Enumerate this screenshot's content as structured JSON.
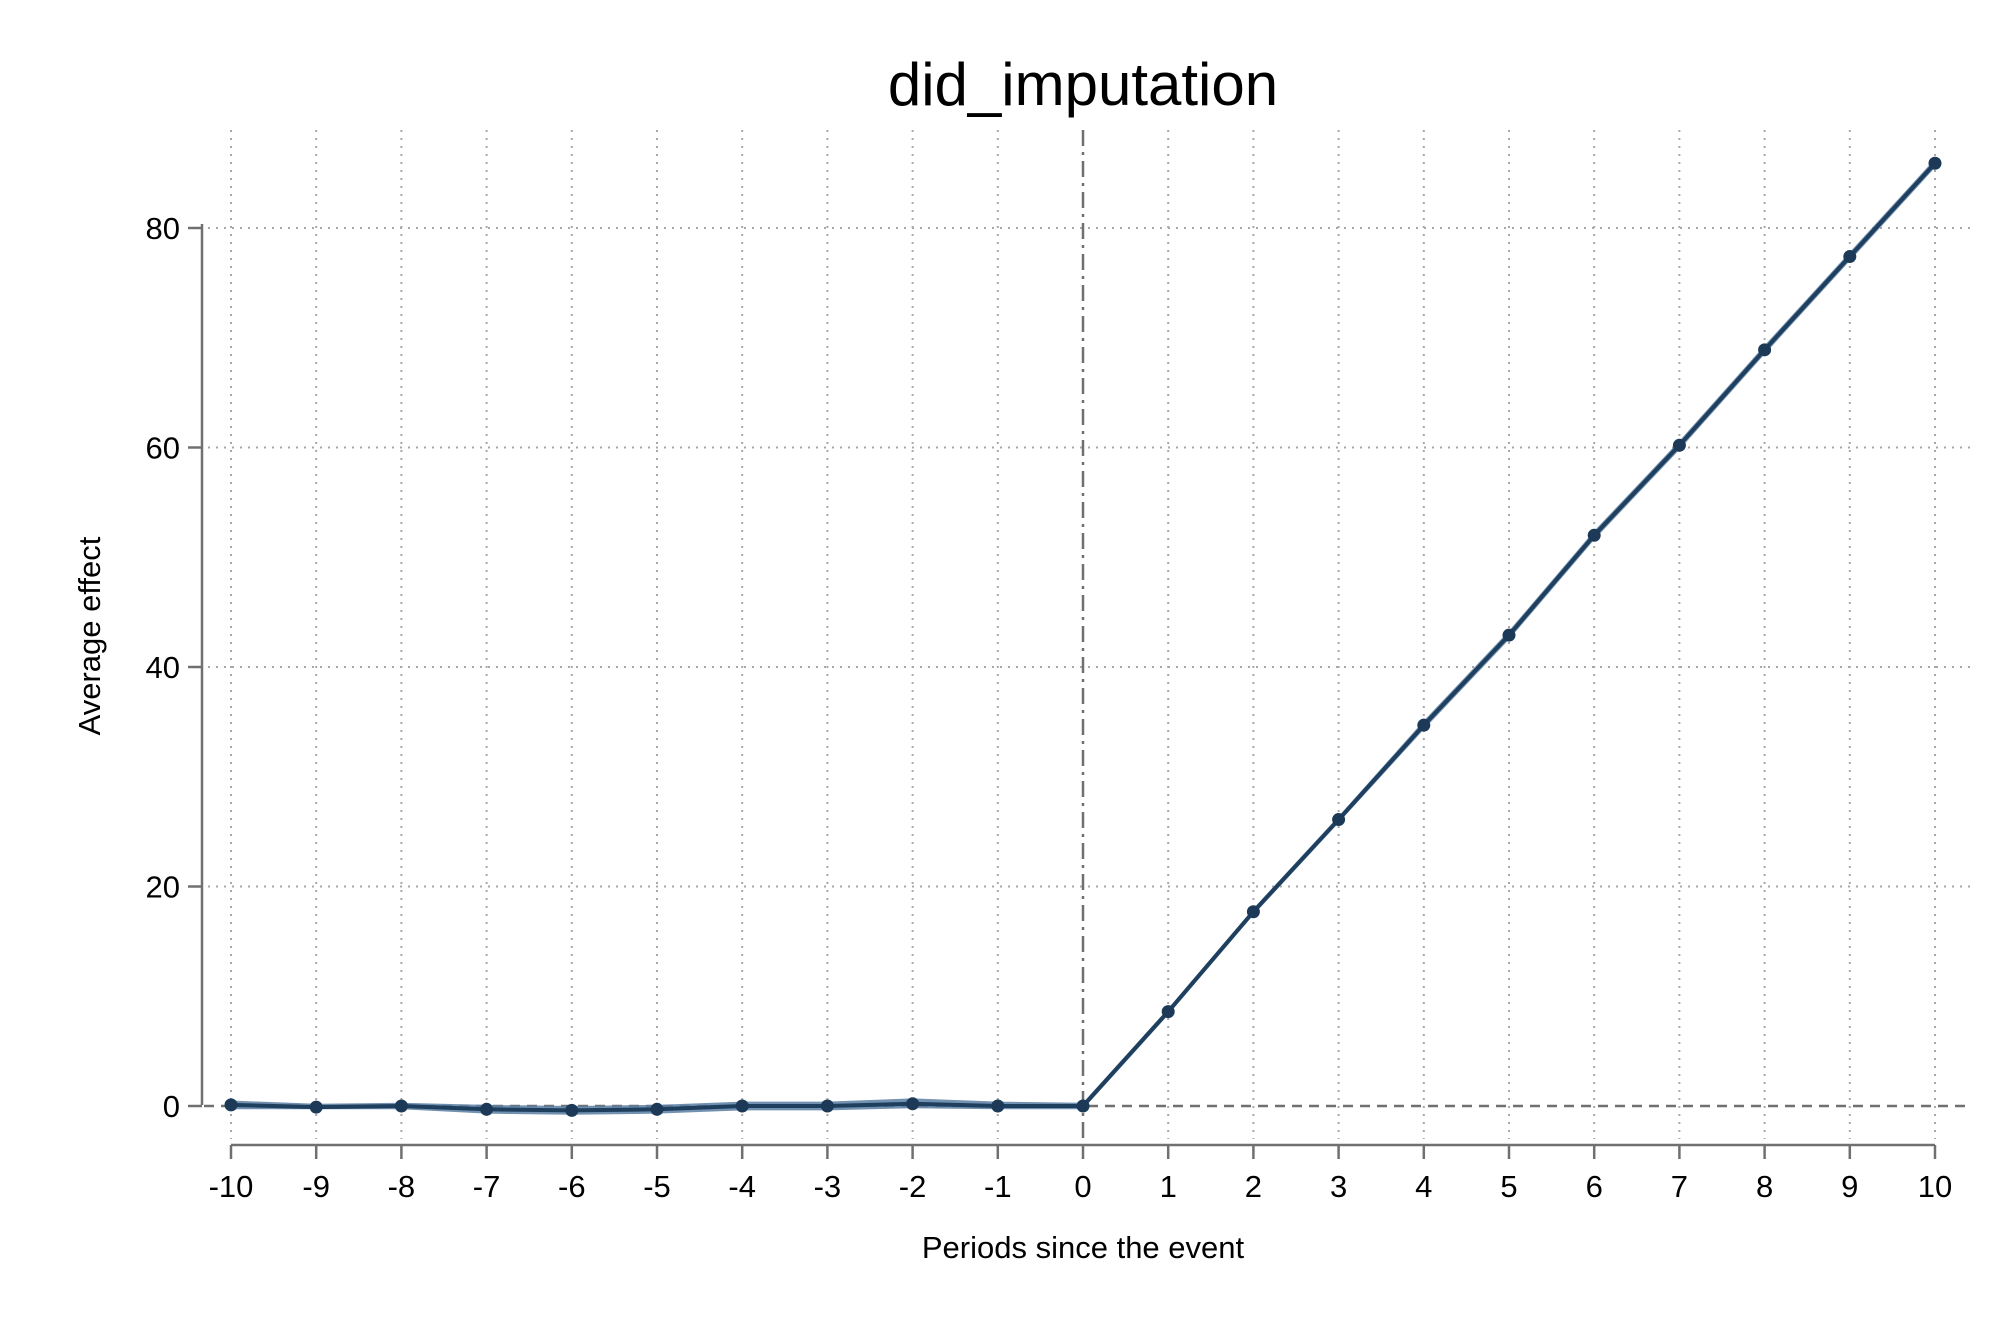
{
  "chart_data": {
    "type": "line",
    "title": "did_imputation",
    "xlabel": "Periods since the event",
    "ylabel": "Average effect",
    "xlim": [
      -10,
      10
    ],
    "ylim": [
      -3.5,
      90
    ],
    "x_ticks": [
      -10,
      -9,
      -8,
      -7,
      -6,
      -5,
      -4,
      -3,
      -2,
      -1,
      0,
      1,
      2,
      3,
      4,
      5,
      6,
      7,
      8,
      9,
      10
    ],
    "y_ticks": [
      0,
      20,
      40,
      60,
      80
    ],
    "grid": true,
    "legend": "none",
    "reference_lines": {
      "vertical_at_x": 0,
      "horizontal_at_y": 0
    },
    "series": [
      {
        "x": [
          -10,
          -9,
          -8,
          -7,
          -6,
          -5,
          -4,
          -3,
          -2,
          -1,
          0,
          1,
          2,
          3,
          4,
          5,
          6,
          7,
          8,
          9,
          10
        ],
        "y": [
          0.1,
          -0.1,
          0.0,
          -0.3,
          -0.4,
          -0.3,
          0.0,
          0.0,
          0.2,
          0.0,
          0.0,
          8.6,
          17.7,
          26.1,
          34.7,
          42.9,
          52.0,
          60.2,
          68.9,
          77.4,
          85.9
        ],
        "ci_lower": [
          -0.3,
          -0.3,
          -0.3,
          -0.7,
          -0.8,
          -0.7,
          -0.4,
          -0.4,
          -0.2,
          -0.3,
          -0.3,
          8.3,
          17.4,
          25.8,
          34.3,
          42.5,
          51.6,
          59.8,
          68.5,
          77.0,
          85.5
        ],
        "ci_upper": [
          0.5,
          0.2,
          0.3,
          0.1,
          0.0,
          0.1,
          0.4,
          0.4,
          0.7,
          0.4,
          0.3,
          8.9,
          18.0,
          26.4,
          35.1,
          43.3,
          52.4,
          60.6,
          69.3,
          77.8,
          86.3
        ]
      }
    ],
    "colors": {
      "line": "#1f3f5f",
      "ci_band": "#5a7ea3",
      "markers": "#1c3a58",
      "axis": "#707070",
      "grid": "#a8a8a8",
      "reference": "#707070"
    }
  }
}
